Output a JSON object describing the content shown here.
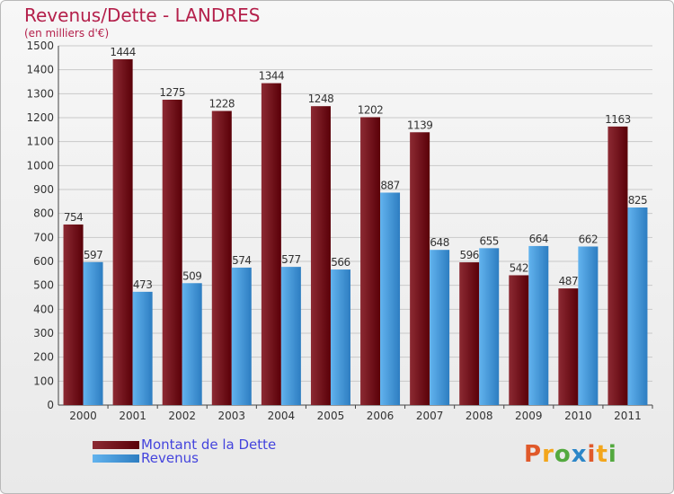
{
  "title": "Revenus/Dette - LANDRES",
  "subtitle": "(en milliers d'€)",
  "logo": "Proxiti",
  "colors": {
    "dette_top": "#8c2a33",
    "dette_bottom": "#5a0008",
    "revenus_top": "#62b3ee",
    "revenus_bottom": "#2d7dc1",
    "grid": "#c9c9c9",
    "axis_text": "#333333"
  },
  "chart_data": {
    "type": "bar",
    "title": "Revenus/Dette - LANDRES",
    "ylabel": "(en milliers d'€)",
    "ylim": [
      0,
      1500
    ],
    "yticks": [
      0,
      100,
      200,
      300,
      400,
      500,
      600,
      700,
      800,
      900,
      1000,
      1100,
      1200,
      1300,
      1400,
      1500
    ],
    "categories": [
      "2000",
      "2001",
      "2002",
      "2003",
      "2004",
      "2005",
      "2006",
      "2007",
      "2008",
      "2009",
      "2010",
      "2011"
    ],
    "series": [
      {
        "name": "Montant de la Dette",
        "values": [
          754,
          1444,
          1275,
          1228,
          1344,
          1248,
          1202,
          1139,
          596,
          542,
          487,
          1163
        ]
      },
      {
        "name": "Revenus",
        "values": [
          597,
          473,
          509,
          574,
          577,
          566,
          887,
          648,
          655,
          664,
          662,
          825
        ]
      }
    ],
    "legend": "bottom-left",
    "grid": true
  }
}
